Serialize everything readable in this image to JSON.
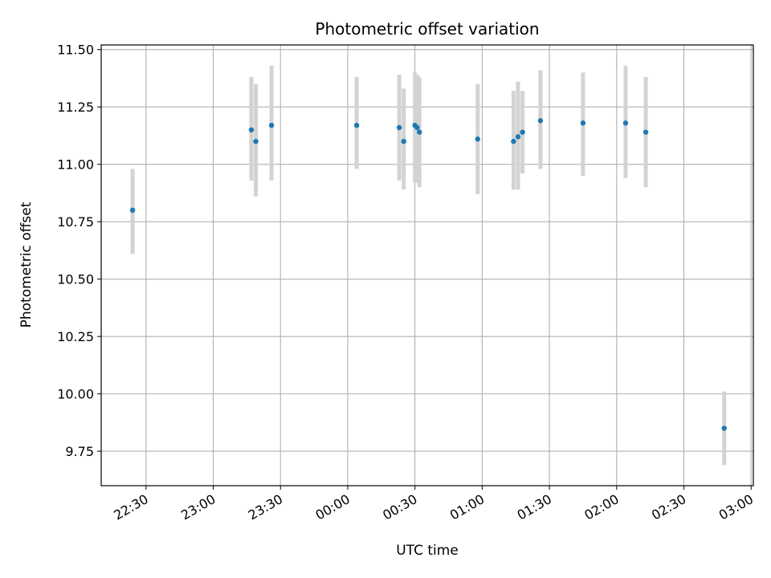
{
  "chart_data": {
    "type": "scatter",
    "title": "Photometric offset variation",
    "xlabel": "UTC time",
    "ylabel": "Photometric offset",
    "x_ticks": [
      "22:30",
      "23:00",
      "23:30",
      "00:00",
      "00:30",
      "01:00",
      "01:30",
      "02:00",
      "02:30",
      "03:00"
    ],
    "y_ticks": [
      "9.75",
      "10.00",
      "10.25",
      "10.50",
      "10.75",
      "11.00",
      "11.25",
      "11.50"
    ],
    "xlim": [
      "22:10",
      "03:01"
    ],
    "ylim": [
      9.6,
      11.52
    ],
    "grid": true,
    "colors": {
      "marker": "#1f77b4",
      "errorbar": "#d3d3d3",
      "grid": "#b0b0b0"
    },
    "points": [
      {
        "time": "22:24",
        "y": 10.8,
        "err_low": 10.61,
        "err_high": 10.98
      },
      {
        "time": "23:17",
        "y": 11.15,
        "err_low": 10.93,
        "err_high": 11.38
      },
      {
        "time": "23:19",
        "y": 11.1,
        "err_low": 10.86,
        "err_high": 11.35
      },
      {
        "time": "23:26",
        "y": 11.17,
        "err_low": 10.93,
        "err_high": 11.43
      },
      {
        "time": "00:04",
        "y": 11.17,
        "err_low": 10.98,
        "err_high": 11.38
      },
      {
        "time": "00:23",
        "y": 11.16,
        "err_low": 10.93,
        "err_high": 11.39
      },
      {
        "time": "00:25",
        "y": 11.1,
        "err_low": 10.89,
        "err_high": 11.33
      },
      {
        "time": "00:30",
        "y": 11.17,
        "err_low": 10.92,
        "err_high": 11.4
      },
      {
        "time": "00:31",
        "y": 11.16,
        "err_low": 10.92,
        "err_high": 11.39
      },
      {
        "time": "00:32",
        "y": 11.14,
        "err_low": 10.9,
        "err_high": 11.38
      },
      {
        "time": "00:58",
        "y": 11.11,
        "err_low": 10.87,
        "err_high": 11.35
      },
      {
        "time": "01:14",
        "y": 11.1,
        "err_low": 10.89,
        "err_high": 11.32
      },
      {
        "time": "01:16",
        "y": 11.12,
        "err_low": 10.89,
        "err_high": 11.36
      },
      {
        "time": "01:18",
        "y": 11.14,
        "err_low": 10.96,
        "err_high": 11.32
      },
      {
        "time": "01:26",
        "y": 11.19,
        "err_low": 10.98,
        "err_high": 11.41
      },
      {
        "time": "01:45",
        "y": 11.18,
        "err_low": 10.95,
        "err_high": 11.4
      },
      {
        "time": "02:04",
        "y": 11.18,
        "err_low": 10.94,
        "err_high": 11.43
      },
      {
        "time": "02:13",
        "y": 11.14,
        "err_low": 10.9,
        "err_high": 11.38
      },
      {
        "time": "02:48",
        "y": 9.85,
        "err_low": 9.69,
        "err_high": 10.01
      }
    ]
  }
}
